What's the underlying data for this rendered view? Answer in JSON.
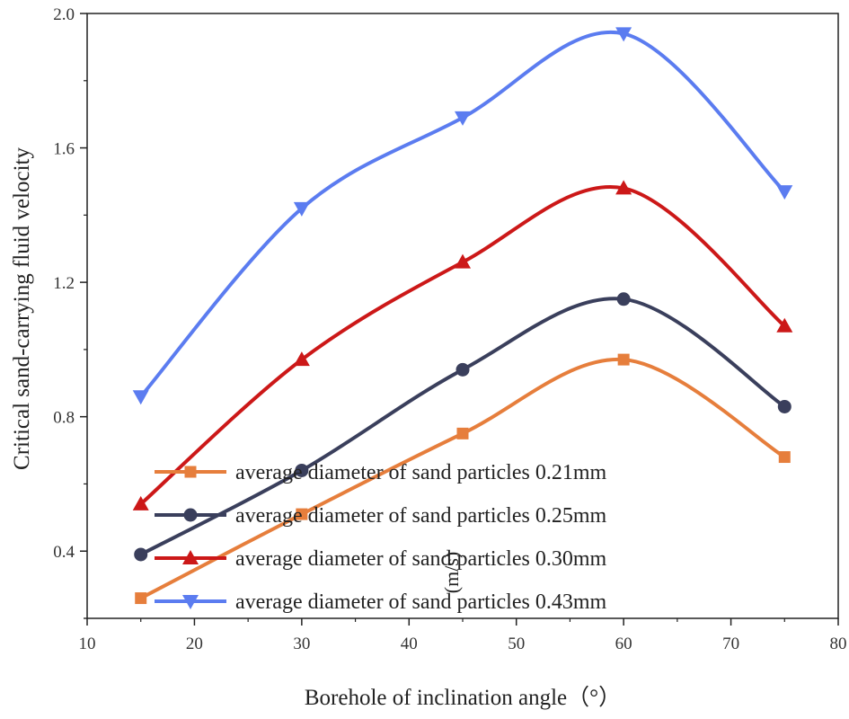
{
  "chart_data": {
    "type": "line",
    "title": "",
    "xlabel": "Borehole of inclination angle（°）",
    "ylabel": "Critical sand-carrying fluid velocity",
    "yunit": "(m/s)",
    "xlim": [
      10,
      80
    ],
    "ylim": [
      0.2,
      2.0
    ],
    "xticks": [
      10,
      20,
      30,
      40,
      50,
      60,
      70,
      80
    ],
    "yticks": [
      0.4,
      0.8,
      1.2,
      1.6,
      2.0
    ],
    "ytick_labels": [
      "0.4",
      "0.8",
      "1.2",
      "1.6",
      "2.0"
    ],
    "x": [
      15,
      30,
      45,
      60,
      75
    ],
    "series": [
      {
        "name": "average diameter of sand particles 0.21mm",
        "color": "#e67e3c",
        "marker": "square",
        "values": [
          0.26,
          0.51,
          0.75,
          0.97,
          0.68
        ]
      },
      {
        "name": "average diameter of sand particles 0.25mm",
        "color": "#3a3f5c",
        "marker": "circle",
        "values": [
          0.39,
          0.64,
          0.94,
          1.15,
          0.83
        ]
      },
      {
        "name": "average diameter of sand particles 0.30mm",
        "color": "#cc1818",
        "marker": "triangle-up",
        "values": [
          0.54,
          0.97,
          1.26,
          1.48,
          1.07
        ]
      },
      {
        "name": "average diameter of sand particles 0.43mm",
        "color": "#5b7cf0",
        "marker": "triangle-down",
        "values": [
          0.86,
          1.42,
          1.69,
          1.94,
          1.47
        ]
      }
    ],
    "legend_position": "bottom-center",
    "grid": false
  }
}
